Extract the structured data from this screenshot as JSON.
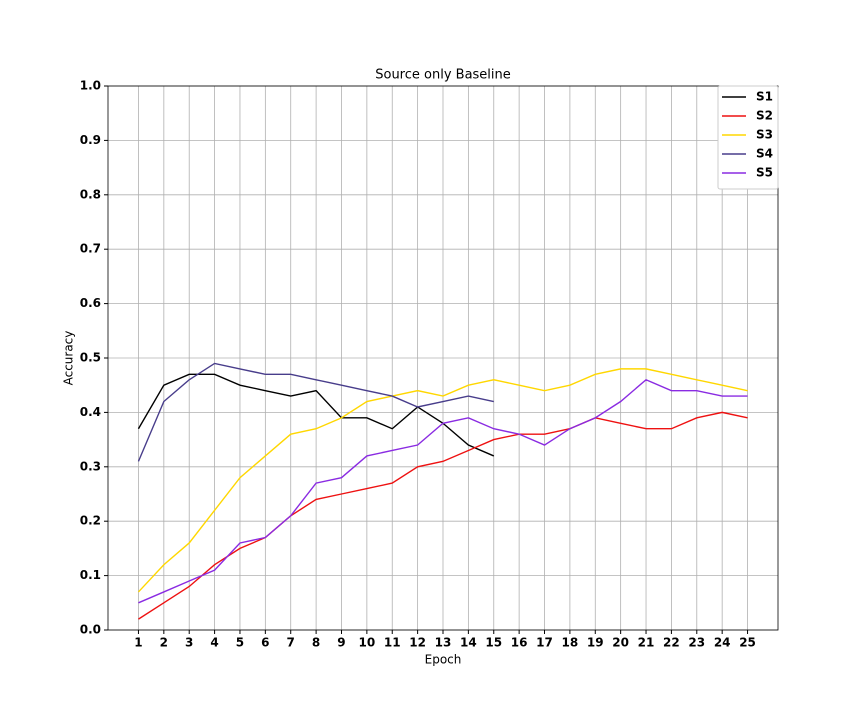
{
  "chart_data": {
    "type": "line",
    "title": "Source only Baseline",
    "x_label": "Epoch",
    "y_label": "Accuracy",
    "x": [
      1,
      2,
      3,
      4,
      5,
      6,
      7,
      8,
      9,
      10,
      11,
      12,
      13,
      14,
      15,
      16,
      17,
      18,
      19,
      20,
      21,
      22,
      23,
      24,
      25
    ],
    "series": [
      {
        "name": "S1",
        "color": "#000000",
        "values": [
          0.37,
          0.45,
          0.47,
          0.47,
          0.45,
          0.44,
          0.43,
          0.44,
          0.39,
          0.39,
          0.37,
          0.41,
          0.38,
          0.34,
          0.32,
          null,
          null,
          null,
          null,
          null,
          null,
          null,
          null,
          null,
          null
        ]
      },
      {
        "name": "S2",
        "color": "#ee1111",
        "values": [
          0.02,
          0.05,
          0.08,
          0.12,
          0.15,
          0.17,
          0.21,
          0.24,
          0.25,
          0.26,
          0.27,
          0.3,
          0.31,
          0.33,
          0.35,
          0.36,
          0.36,
          0.37,
          0.39,
          0.38,
          0.37,
          0.37,
          0.39,
          0.4,
          0.39
        ]
      },
      {
        "name": "S3",
        "color": "#ffd700",
        "values": [
          0.07,
          0.12,
          0.16,
          0.22,
          0.28,
          0.32,
          0.36,
          0.37,
          0.39,
          0.42,
          0.43,
          0.44,
          0.43,
          0.45,
          0.46,
          0.45,
          0.44,
          0.45,
          0.47,
          0.48,
          0.48,
          0.47,
          0.46,
          0.45,
          0.44
        ]
      },
      {
        "name": "S4",
        "color": "#483d8b",
        "values": [
          0.31,
          0.42,
          0.46,
          0.49,
          0.48,
          0.47,
          0.47,
          0.46,
          0.45,
          0.44,
          0.43,
          0.41,
          0.42,
          0.43,
          0.42,
          null,
          null,
          null,
          null,
          null,
          null,
          null,
          null,
          null,
          null
        ]
      },
      {
        "name": "S5",
        "color": "#8a2be2",
        "values": [
          0.05,
          0.07,
          0.09,
          0.11,
          0.16,
          0.17,
          0.21,
          0.27,
          0.28,
          0.32,
          0.33,
          0.34,
          0.38,
          0.39,
          0.37,
          0.36,
          0.34,
          0.37,
          0.39,
          0.42,
          0.46,
          0.44,
          0.44,
          0.43,
          0.43
        ]
      }
    ],
    "xlim": [
      -0.2,
      26.2
    ],
    "xticks": [
      1,
      2,
      3,
      4,
      5,
      6,
      7,
      8,
      9,
      10,
      11,
      12,
      13,
      14,
      15,
      16,
      17,
      18,
      19,
      20,
      21,
      22,
      23,
      24,
      25
    ],
    "ylim": [
      0,
      1
    ],
    "yticks": [
      {
        "value": 0,
        "label": "0.0"
      },
      0.1,
      0.2,
      0.3,
      0.4,
      0.5,
      0.6,
      0.7,
      0.8,
      0.9,
      {
        "value": 1,
        "label": "1.0"
      }
    ],
    "grid": true,
    "legend": "upper right"
  }
}
